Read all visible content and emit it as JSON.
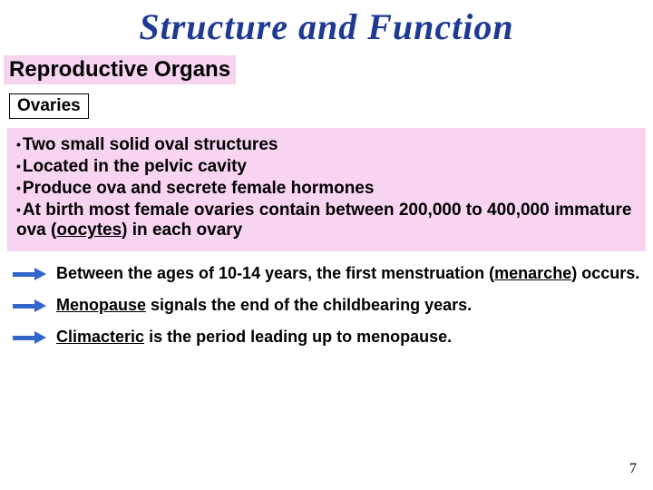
{
  "title": {
    "text": "Structure and Function",
    "color": "#1f3a93",
    "fontsize": 40
  },
  "section": {
    "label": "Reproductive Organs",
    "bg": "#f7d4f0",
    "fontsize": 24
  },
  "subheading": {
    "label": "Ovaries",
    "fontsize": 19
  },
  "bullets": {
    "bg": "#f7d4f0",
    "fontsize": 19,
    "items": [
      "Two small solid oval structures",
      "Located in the pelvic cavity",
      "Produce ova and secrete female hormones"
    ],
    "line4_pre": "At birth most female ovaries contain between 200,000 to 400,000 immature ova (",
    "line4_term": "oocytes",
    "line4_post": ") in each ovary"
  },
  "notes": {
    "fontsize": 18,
    "arrow_color": "#3366cc",
    "n1_pre": "Between the ages of 10-14 years, the first menstruation (",
    "n1_term": "menarche",
    "n1_post": ") occurs.",
    "n2_term": "Menopause",
    "n2_post": " signals the end of the childbearing years.",
    "n3_term": "Climacteric",
    "n3_post": " is the period leading up to menopause."
  },
  "pagenum": "7",
  "pagenum_fontsize": 16
}
